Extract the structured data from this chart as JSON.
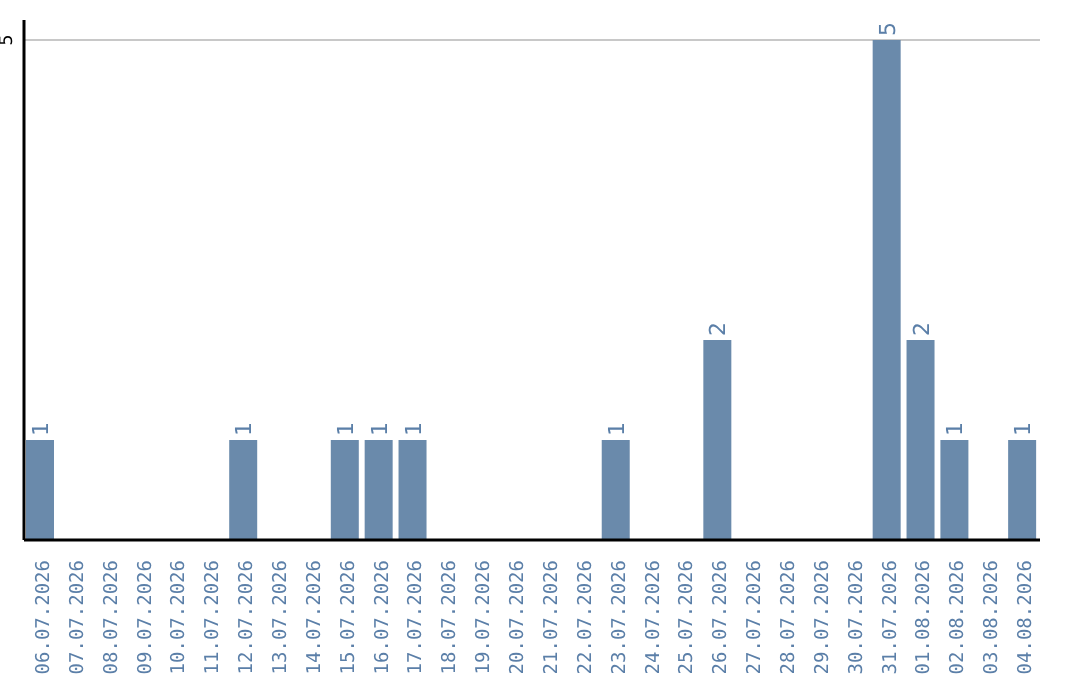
{
  "chart_data": {
    "type": "bar",
    "categories": [
      "06.07.2026",
      "07.07.2026",
      "08.07.2026",
      "09.07.2026",
      "10.07.2026",
      "11.07.2026",
      "12.07.2026",
      "13.07.2026",
      "14.07.2026",
      "15.07.2026",
      "16.07.2026",
      "17.07.2026",
      "18.07.2026",
      "19.07.2026",
      "20.07.2026",
      "21.07.2026",
      "22.07.2026",
      "23.07.2026",
      "24.07.2026",
      "25.07.2026",
      "26.07.2026",
      "27.07.2026",
      "28.07.2026",
      "29.07.2026",
      "30.07.2026",
      "31.07.2026",
      "01.08.2026",
      "02.08.2026",
      "03.08.2026",
      "04.08.2026"
    ],
    "values": [
      1,
      0,
      0,
      0,
      0,
      0,
      1,
      0,
      0,
      1,
      1,
      1,
      0,
      0,
      0,
      0,
      0,
      1,
      0,
      0,
      2,
      0,
      0,
      0,
      0,
      5,
      2,
      1,
      0,
      1
    ],
    "value_labels": [
      "1",
      null,
      null,
      null,
      null,
      null,
      "1",
      null,
      null,
      "1",
      "1",
      "1",
      null,
      null,
      null,
      null,
      null,
      "1",
      null,
      null,
      "2",
      null,
      null,
      null,
      null,
      "5",
      "2",
      "1",
      null,
      "1"
    ],
    "color": "#6a8aab",
    "ylim": [
      0,
      5.2
    ],
    "yticks": [
      5
    ],
    "grid": "y"
  }
}
